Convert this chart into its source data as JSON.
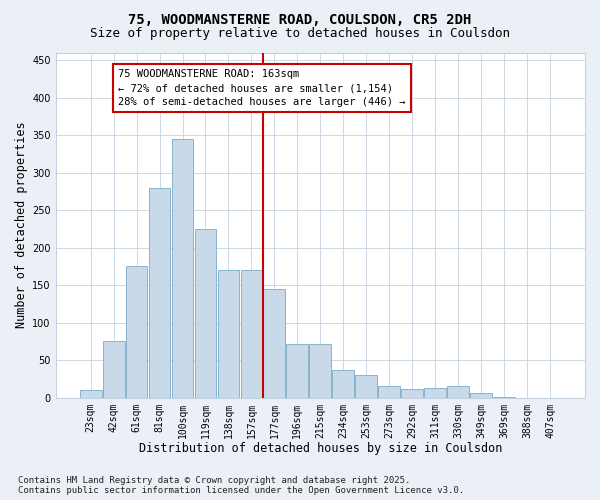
{
  "title": "75, WOODMANSTERNE ROAD, COULSDON, CR5 2DH",
  "subtitle": "Size of property relative to detached houses in Coulsdon",
  "xlabel": "Distribution of detached houses by size in Coulsdon",
  "ylabel": "Number of detached properties",
  "bar_color": "#c8daea",
  "bar_edge_color": "#7aaac8",
  "categories": [
    "23sqm",
    "42sqm",
    "61sqm",
    "81sqm",
    "100sqm",
    "119sqm",
    "138sqm",
    "157sqm",
    "177sqm",
    "196sqm",
    "215sqm",
    "234sqm",
    "253sqm",
    "273sqm",
    "292sqm",
    "311sqm",
    "330sqm",
    "349sqm",
    "369sqm",
    "388sqm",
    "407sqm"
  ],
  "values": [
    10,
    75,
    175,
    280,
    345,
    225,
    170,
    170,
    145,
    72,
    72,
    37,
    30,
    15,
    12,
    13,
    16,
    6,
    1,
    0,
    0
  ],
  "ylim": [
    0,
    460
  ],
  "yticks": [
    0,
    50,
    100,
    150,
    200,
    250,
    300,
    350,
    400,
    450
  ],
  "vline_x": 7.5,
  "vline_color": "#cc0000",
  "annotation_text": "75 WOODMANSTERNE ROAD: 163sqm\n← 72% of detached houses are smaller (1,154)\n28% of semi-detached houses are larger (446) →",
  "annotation_box_facecolor": "#ffffff",
  "annotation_box_edgecolor": "#cc0000",
  "footer_line1": "Contains HM Land Registry data © Crown copyright and database right 2025.",
  "footer_line2": "Contains public sector information licensed under the Open Government Licence v3.0.",
  "background_color": "#eaf0f6",
  "plot_background_color": "#ffffff",
  "grid_color": "#c5d2e0",
  "title_fontsize": 10,
  "subtitle_fontsize": 9,
  "xlabel_fontsize": 8.5,
  "ylabel_fontsize": 8.5,
  "tick_fontsize": 7,
  "annotation_fontsize": 7.5,
  "footer_fontsize": 6.5
}
